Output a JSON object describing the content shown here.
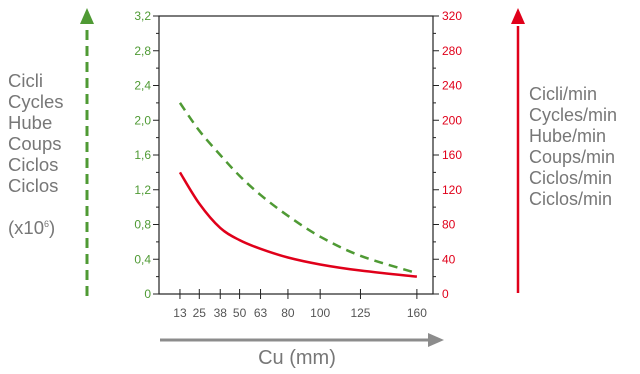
{
  "chart_data": {
    "type": "line",
    "xlabel": "Cu (mm)",
    "x_ticks": [
      13,
      25,
      38,
      50,
      63,
      80,
      100,
      125,
      160
    ],
    "x_tick_labels": [
      "13",
      "25",
      "38",
      "50",
      "63",
      "80",
      "100",
      "125",
      "160"
    ],
    "y_left": {
      "labels": [
        "Cicli",
        "Cycles",
        "Hube",
        "Coups",
        "Ciclos",
        "Ciclos"
      ],
      "unit_prefix": "(x10",
      "unit_exponent": "6",
      "unit_suffix": ")",
      "ylim": [
        0,
        3.2
      ],
      "ticks": [
        0,
        0.4,
        0.8,
        1.2,
        1.6,
        2.0,
        2.4,
        2.8,
        3.2
      ],
      "tick_labels": [
        "0",
        "0,4",
        "0,8",
        "1,2",
        "1,6",
        "2,0",
        "2,4",
        "2,8",
        "3,2"
      ],
      "color": "#4f9a34"
    },
    "y_right": {
      "labels": [
        "Cicli/min",
        "Cycles/min",
        "Hube/min",
        "Coups/min",
        "Ciclos/min",
        "Ciclos/min"
      ],
      "ylim": [
        0,
        320
      ],
      "ticks": [
        0,
        40,
        80,
        120,
        160,
        200,
        240,
        280,
        320
      ],
      "tick_labels": [
        "0",
        "40",
        "80",
        "120",
        "160",
        "200",
        "240",
        "280",
        "320"
      ],
      "color": "#e0001a"
    },
    "series": [
      {
        "axis": "left",
        "style": "dashed",
        "color": "#4f9a34",
        "x": [
          13,
          25,
          38,
          50,
          63,
          80,
          100,
          125,
          160
        ],
        "y": [
          2.2,
          1.88,
          1.6,
          1.36,
          1.14,
          0.9,
          0.66,
          0.44,
          0.24
        ]
      },
      {
        "axis": "right",
        "style": "solid",
        "color": "#e0001a",
        "x": [
          13,
          25,
          38,
          50,
          63,
          80,
          100,
          125,
          160
        ],
        "y": [
          140,
          104,
          76,
          62,
          52,
          42,
          34,
          27,
          20
        ]
      }
    ]
  }
}
